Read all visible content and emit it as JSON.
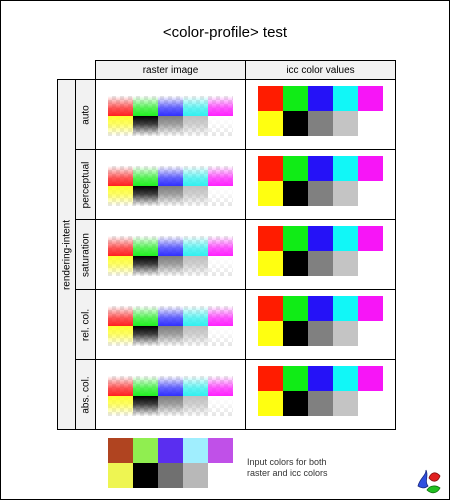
{
  "page": {
    "title": "<color-profile> test"
  },
  "columns": {
    "raster": "raster image",
    "icc": "icc color values"
  },
  "group_label": "rendering-intent",
  "rows": [
    {
      "label": "auto"
    },
    {
      "label": "perceptual"
    },
    {
      "label": "saturation"
    },
    {
      "label": "rel. col."
    },
    {
      "label": "abs. col."
    }
  ],
  "icc_colors": {
    "top": [
      "#ff1c00",
      "#10ec16",
      "#2512f7",
      "#11f7f7",
      "#f715f7"
    ],
    "bottom": [
      "#ffff10",
      "#000000",
      "#808080",
      "#c4c4c4",
      "#ffffff"
    ]
  },
  "raster_colors": {
    "top": [
      "#ff2020",
      "#20f020",
      "#3030ff",
      "#30f0f0",
      "#ff20ff"
    ],
    "bottom": [
      "#ffff30",
      "#000000",
      "#808080",
      "#c0c0c0",
      "#ffffff"
    ]
  },
  "input_colors": {
    "top": [
      "#b04420",
      "#90ee50",
      "#5a2ef0",
      "#a0eefe",
      "#c050e8"
    ],
    "bottom": [
      "#eef552",
      "#000000",
      "#707070",
      "#b8b8b8",
      "#ffffff"
    ]
  },
  "legend": {
    "line1": "Input colors for both",
    "line2": "raster and icc colors"
  },
  "logo": {
    "icon": "svg-logo-icon"
  }
}
